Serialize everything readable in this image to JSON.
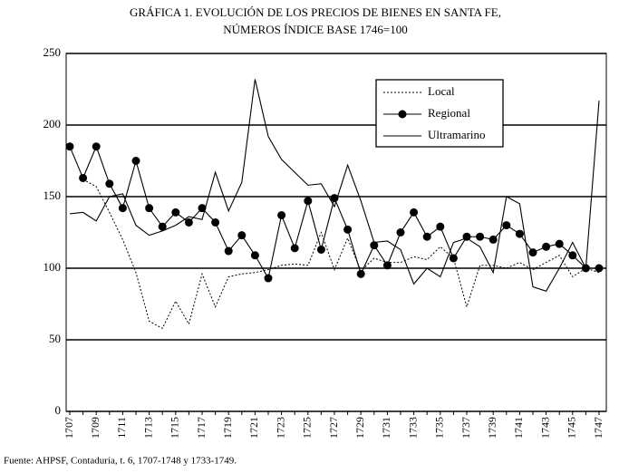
{
  "chart_data": {
    "type": "line",
    "title": "GRÁFICA 1. EVOLUCIÓN DE LOS PRECIOS DE BIENES EN SANTA FE,",
    "subtitle": "NÚMEROS ÍNDICE BASE 1746=100",
    "source": "Fuente: AHPSF, Contaduría, t. 6, 1707-1748 y 1733-1749.",
    "x": [
      1707,
      1708,
      1709,
      1710,
      1711,
      1712,
      1713,
      1714,
      1715,
      1716,
      1717,
      1718,
      1719,
      1720,
      1721,
      1722,
      1723,
      1724,
      1725,
      1726,
      1727,
      1728,
      1729,
      1730,
      1731,
      1732,
      1733,
      1734,
      1735,
      1736,
      1737,
      1738,
      1739,
      1740,
      1741,
      1742,
      1743,
      1744,
      1745,
      1746,
      1747
    ],
    "xlim": [
      1707,
      1747
    ],
    "xticks": [
      1707,
      1709,
      1711,
      1713,
      1715,
      1717,
      1719,
      1721,
      1723,
      1725,
      1727,
      1729,
      1731,
      1733,
      1735,
      1737,
      1739,
      1741,
      1743,
      1745,
      1747
    ],
    "ylim": [
      0,
      250
    ],
    "yticks": [
      0,
      50,
      100,
      150,
      200,
      250
    ],
    "grid": true,
    "legend": "upper right",
    "series": [
      {
        "name": "Local",
        "color": "#000000",
        "style": "dotted",
        "values": [
          null,
          162,
          157,
          139,
          120,
          97,
          63,
          58,
          77,
          61,
          96,
          73,
          94,
          96,
          97,
          99,
          102,
          103,
          102,
          125,
          99,
          121,
          98,
          107,
          104,
          104,
          108,
          106,
          115,
          107,
          73,
          102,
          102,
          100,
          104,
          99,
          104,
          109,
          94,
          100,
          97
        ]
      },
      {
        "name": "Regional",
        "color": "#000000",
        "style": "markers",
        "values": [
          185,
          163,
          185,
          159,
          142,
          175,
          142,
          129,
          139,
          132,
          142,
          132,
          112,
          123,
          109,
          93,
          137,
          114,
          147,
          113,
          149,
          127,
          96,
          116,
          102,
          125,
          139,
          122,
          129,
          107,
          122,
          122,
          120,
          130,
          124,
          111,
          115,
          117,
          109,
          100,
          100
        ]
      },
      {
        "name": "Ultramarino",
        "color": "#000000",
        "style": "solid",
        "values": [
          138,
          139,
          133,
          150,
          152,
          130,
          123,
          126,
          130,
          136,
          134,
          167,
          140,
          160,
          232,
          192,
          176,
          167,
          158,
          159,
          143,
          172,
          147,
          118,
          119,
          113,
          89,
          100,
          94,
          118,
          121,
          115,
          97,
          150,
          145,
          87,
          84,
          100,
          118,
          100,
          217
        ]
      }
    ]
  }
}
